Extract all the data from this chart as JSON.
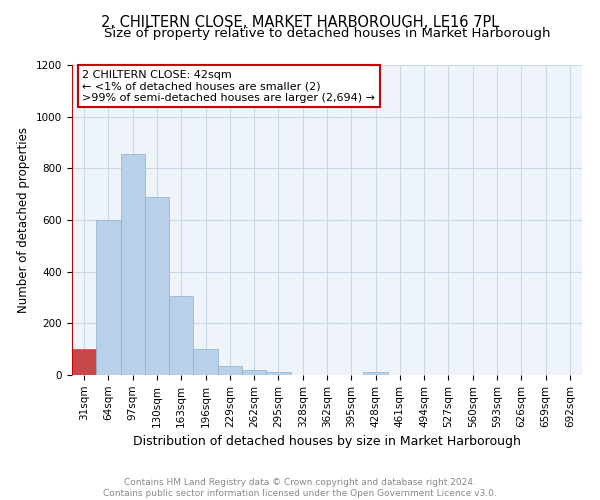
{
  "title": "2, CHILTERN CLOSE, MARKET HARBOROUGH, LE16 7PL",
  "subtitle": "Size of property relative to detached houses in Market Harborough",
  "xlabel": "Distribution of detached houses by size in Market Harborough",
  "ylabel": "Number of detached properties",
  "categories": [
    "31sqm",
    "64sqm",
    "97sqm",
    "130sqm",
    "163sqm",
    "196sqm",
    "229sqm",
    "262sqm",
    "295sqm",
    "328sqm",
    "362sqm",
    "395sqm",
    "428sqm",
    "461sqm",
    "494sqm",
    "527sqm",
    "560sqm",
    "593sqm",
    "626sqm",
    "659sqm",
    "692sqm"
  ],
  "values": [
    100,
    600,
    855,
    690,
    305,
    100,
    33,
    20,
    10,
    0,
    0,
    0,
    10,
    0,
    0,
    0,
    0,
    0,
    0,
    0,
    0
  ],
  "bar_color": "#b8d0e8",
  "bar_edge_color": "#8ab0d0",
  "highlight_bar_index": 0,
  "highlight_bar_color": "#c8484a",
  "highlight_bar_edge_color": "#c8484a",
  "annotation_text": "2 CHILTERN CLOSE: 42sqm\n← <1% of detached houses are smaller (2)\n>99% of semi-detached houses are larger (2,694) →",
  "annotation_box_color": "#ffffff",
  "annotation_box_edge_color": "#cc0000",
  "property_line_color": "#cc0000",
  "ylim": [
    0,
    1200
  ],
  "yticks": [
    0,
    200,
    400,
    600,
    800,
    1000,
    1200
  ],
  "grid_color": "#c8d8e8",
  "plot_bg_color": "#eef4fa",
  "background_color": "#ffffff",
  "footer_text": "Contains HM Land Registry data © Crown copyright and database right 2024.\nContains public sector information licensed under the Open Government Licence v3.0.",
  "title_fontsize": 10.5,
  "subtitle_fontsize": 9.5,
  "xlabel_fontsize": 9,
  "ylabel_fontsize": 8.5,
  "tick_fontsize": 7.5,
  "annotation_fontsize": 8,
  "footer_fontsize": 6.5
}
